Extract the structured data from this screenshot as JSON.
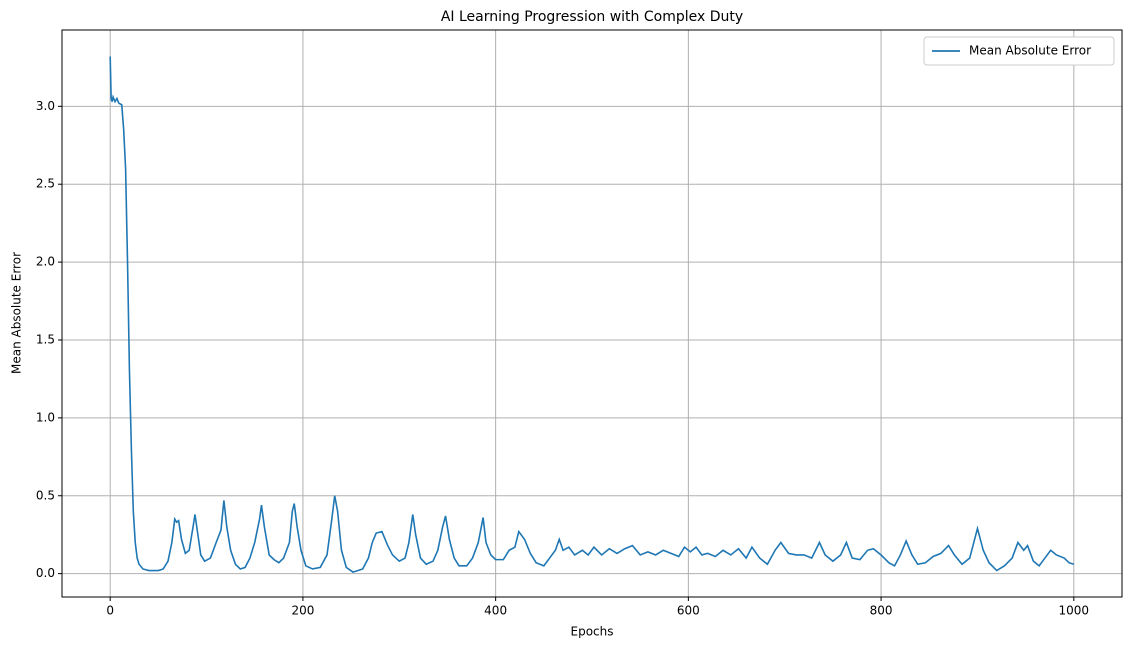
{
  "chart_data": {
    "type": "line",
    "title": "AI Learning Progression with Complex Duty",
    "xlabel": "Epochs",
    "ylabel": "Mean Absolute Error",
    "x": [
      0,
      1,
      2,
      3,
      5,
      7,
      9,
      12,
      14,
      16,
      18,
      20,
      22,
      24,
      26,
      28,
      30,
      34,
      40,
      50,
      55,
      60,
      64,
      67,
      69,
      71,
      74,
      78,
      82,
      86,
      88,
      91,
      94,
      98,
      104,
      110,
      115,
      118,
      121,
      125,
      130,
      135,
      140,
      145,
      150,
      155,
      157,
      160,
      165,
      170,
      175,
      180,
      186,
      189,
      191,
      194,
      198,
      203,
      210,
      218,
      225,
      230,
      233,
      236,
      240,
      245,
      252,
      262,
      268,
      272,
      276,
      282,
      288,
      293,
      300,
      306,
      310,
      314,
      317,
      322,
      328,
      335,
      340,
      345,
      348,
      352,
      357,
      362,
      370,
      376,
      382,
      387,
      390,
      395,
      400,
      408,
      414,
      420,
      424,
      430,
      436,
      442,
      450,
      456,
      462,
      466,
      470,
      476,
      482,
      490,
      496,
      502,
      510,
      518,
      526,
      534,
      542,
      550,
      558,
      566,
      574,
      582,
      590,
      596,
      602,
      608,
      614,
      620,
      628,
      636,
      644,
      652,
      660,
      666,
      674,
      682,
      690,
      696,
      704,
      712,
      720,
      728,
      736,
      742,
      750,
      758,
      764,
      770,
      778,
      786,
      792,
      800,
      808,
      814,
      820,
      826,
      832,
      838,
      846,
      854,
      862,
      870,
      876,
      884,
      892,
      900,
      906,
      912,
      920,
      928,
      936,
      942,
      948,
      952,
      958,
      964,
      970,
      976,
      982,
      990,
      995,
      1000
    ],
    "series": [
      {
        "name": "Mean Absolute Error",
        "color": "#1f77b4",
        "values": [
          3.32,
          3.05,
          3.03,
          3.06,
          3.03,
          3.05,
          3.02,
          3.01,
          2.85,
          2.6,
          2.0,
          1.3,
          0.8,
          0.4,
          0.2,
          0.1,
          0.06,
          0.03,
          0.02,
          0.02,
          0.03,
          0.08,
          0.2,
          0.35,
          0.33,
          0.34,
          0.22,
          0.13,
          0.15,
          0.3,
          0.38,
          0.25,
          0.12,
          0.08,
          0.1,
          0.2,
          0.28,
          0.47,
          0.3,
          0.15,
          0.06,
          0.03,
          0.04,
          0.1,
          0.2,
          0.35,
          0.44,
          0.3,
          0.12,
          0.09,
          0.07,
          0.1,
          0.2,
          0.4,
          0.45,
          0.3,
          0.15,
          0.05,
          0.03,
          0.04,
          0.12,
          0.35,
          0.5,
          0.4,
          0.15,
          0.04,
          0.01,
          0.03,
          0.1,
          0.2,
          0.26,
          0.27,
          0.18,
          0.12,
          0.08,
          0.1,
          0.2,
          0.38,
          0.25,
          0.1,
          0.06,
          0.08,
          0.15,
          0.3,
          0.37,
          0.22,
          0.1,
          0.05,
          0.05,
          0.1,
          0.2,
          0.36,
          0.2,
          0.12,
          0.09,
          0.09,
          0.15,
          0.17,
          0.27,
          0.22,
          0.13,
          0.07,
          0.05,
          0.1,
          0.15,
          0.22,
          0.15,
          0.17,
          0.12,
          0.15,
          0.12,
          0.17,
          0.12,
          0.16,
          0.13,
          0.16,
          0.18,
          0.12,
          0.14,
          0.12,
          0.15,
          0.13,
          0.11,
          0.17,
          0.14,
          0.17,
          0.12,
          0.13,
          0.11,
          0.15,
          0.12,
          0.16,
          0.1,
          0.17,
          0.1,
          0.06,
          0.15,
          0.2,
          0.13,
          0.12,
          0.12,
          0.1,
          0.2,
          0.12,
          0.08,
          0.12,
          0.2,
          0.1,
          0.09,
          0.15,
          0.16,
          0.12,
          0.07,
          0.05,
          0.12,
          0.21,
          0.12,
          0.06,
          0.07,
          0.11,
          0.13,
          0.18,
          0.12,
          0.06,
          0.1,
          0.29,
          0.15,
          0.07,
          0.02,
          0.05,
          0.1,
          0.2,
          0.15,
          0.18,
          0.08,
          0.05,
          0.1,
          0.15,
          0.12,
          0.1,
          0.07,
          0.06
        ]
      }
    ],
    "xlim": [
      -50,
      1050
    ],
    "ylim": [
      -0.15,
      3.49
    ],
    "xticks": [
      0,
      200,
      400,
      600,
      800,
      1000
    ],
    "yticks": [
      {
        "value": 0,
        "label": "0.0"
      },
      0.5,
      {
        "value": 1,
        "label": "1.0"
      },
      1.5,
      {
        "value": 2,
        "label": "2.0"
      },
      2.5,
      {
        "value": 3,
        "label": "3.0"
      }
    ],
    "grid": true,
    "legend": "upper right"
  }
}
